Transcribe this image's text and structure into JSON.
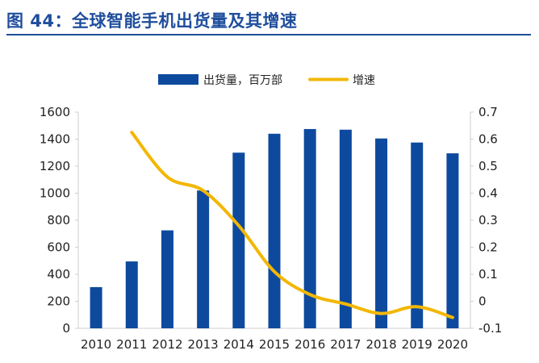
{
  "page": {
    "figure_title": "图 44：全球智能手机出货量及其增速"
  },
  "colors": {
    "bar": "#0d4a9e",
    "line": "#f2b705",
    "title": "#1f4e9c",
    "axis": "#cfcfcf"
  },
  "chart_data": {
    "type": "bar",
    "title": "",
    "xlabel": "",
    "ylabel": "",
    "categories": [
      "2010",
      "2011",
      "2012",
      "2013",
      "2014",
      "2015",
      "2016",
      "2017",
      "2018",
      "2019",
      "2020"
    ],
    "series": [
      {
        "name": "出货量，百万部",
        "type": "bar",
        "axis": "left",
        "values": [
          305,
          495,
          725,
          1020,
          1300,
          1440,
          1475,
          1470,
          1405,
          1375,
          1295
        ]
      },
      {
        "name": "增速",
        "type": "line",
        "axis": "right",
        "values": [
          null,
          0.625,
          0.46,
          0.41,
          0.28,
          0.11,
          0.025,
          -0.01,
          -0.045,
          -0.02,
          -0.06
        ]
      }
    ],
    "left_axis": {
      "ylim": [
        0,
        1600
      ],
      "ticks": [
        "0",
        "200",
        "400",
        "600",
        "800",
        "1000",
        "1200",
        "1400",
        "1600"
      ]
    },
    "right_axis": {
      "ylim": [
        -0.1,
        0.7
      ],
      "ticks": [
        "-0.1",
        "0",
        "0.1",
        "0.2",
        "0.3",
        "0.4",
        "0.5",
        "0.6",
        "0.7"
      ]
    },
    "legend": {
      "position": "top-center"
    },
    "grid": false
  }
}
